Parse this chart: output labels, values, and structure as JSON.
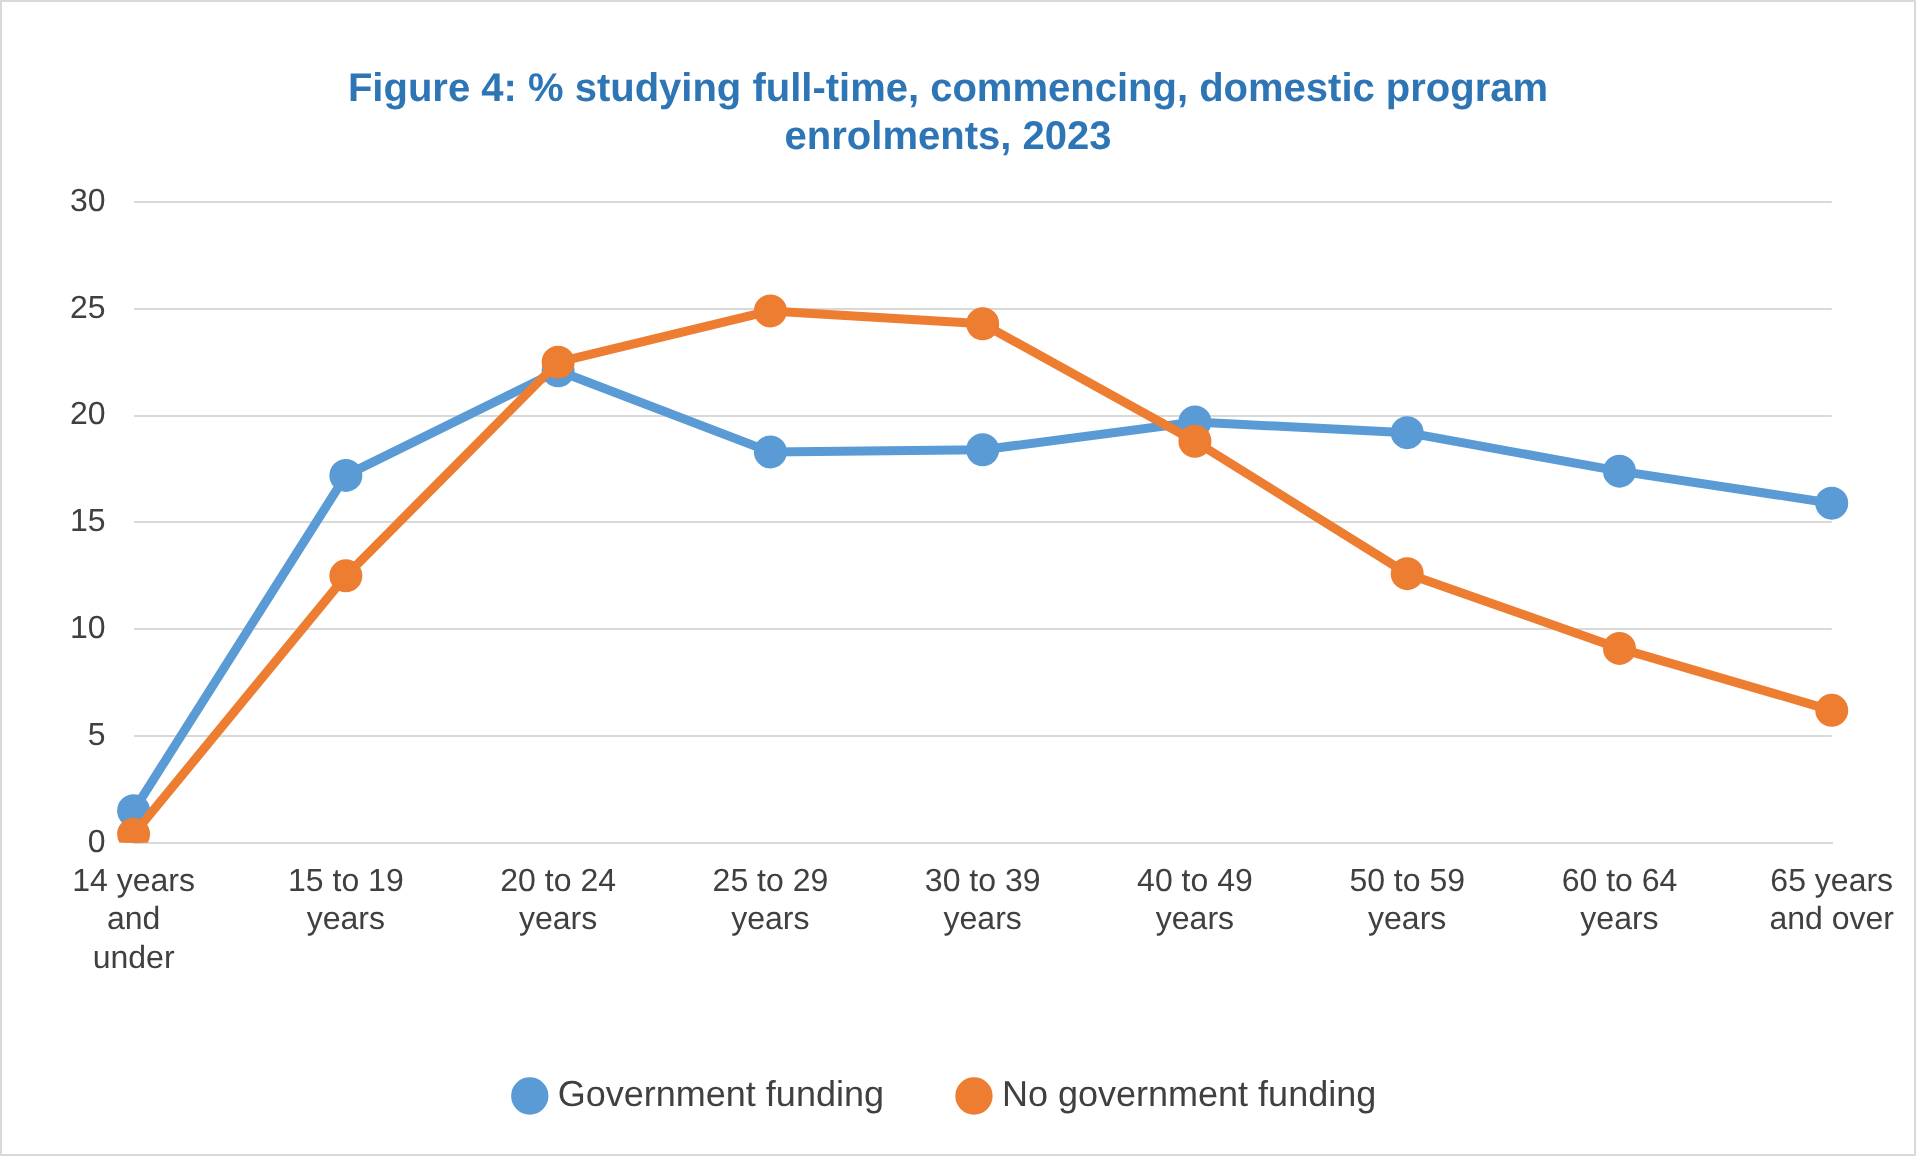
{
  "chart_data": {
    "type": "line",
    "title": "Figure 4: % studying full-time, commencing, domestic program enrolments, 2023",
    "categories": [
      "14 years and under",
      "15 to 19 years",
      "20 to 24 years",
      "25 to 29 years",
      "30 to 39 years",
      "40 to 49 years",
      "50 to 59 years",
      "60 to 64 years",
      "65 years and over"
    ],
    "series": [
      {
        "name": "Government funding",
        "color": "#5b9bd5",
        "values": [
          1.5,
          17.2,
          22.1,
          18.3,
          18.4,
          19.7,
          19.2,
          17.4,
          15.9
        ]
      },
      {
        "name": "No government funding",
        "color": "#ed7d31",
        "values": [
          0.4,
          12.5,
          22.5,
          24.9,
          24.3,
          18.8,
          12.6,
          9.1,
          6.2
        ]
      }
    ],
    "ylim": [
      0,
      30
    ],
    "yticks": [
      0,
      5,
      10,
      15,
      20,
      25,
      30
    ],
    "grid": "y",
    "legend": "bottom",
    "marker": "circle",
    "line_style": "solid"
  }
}
